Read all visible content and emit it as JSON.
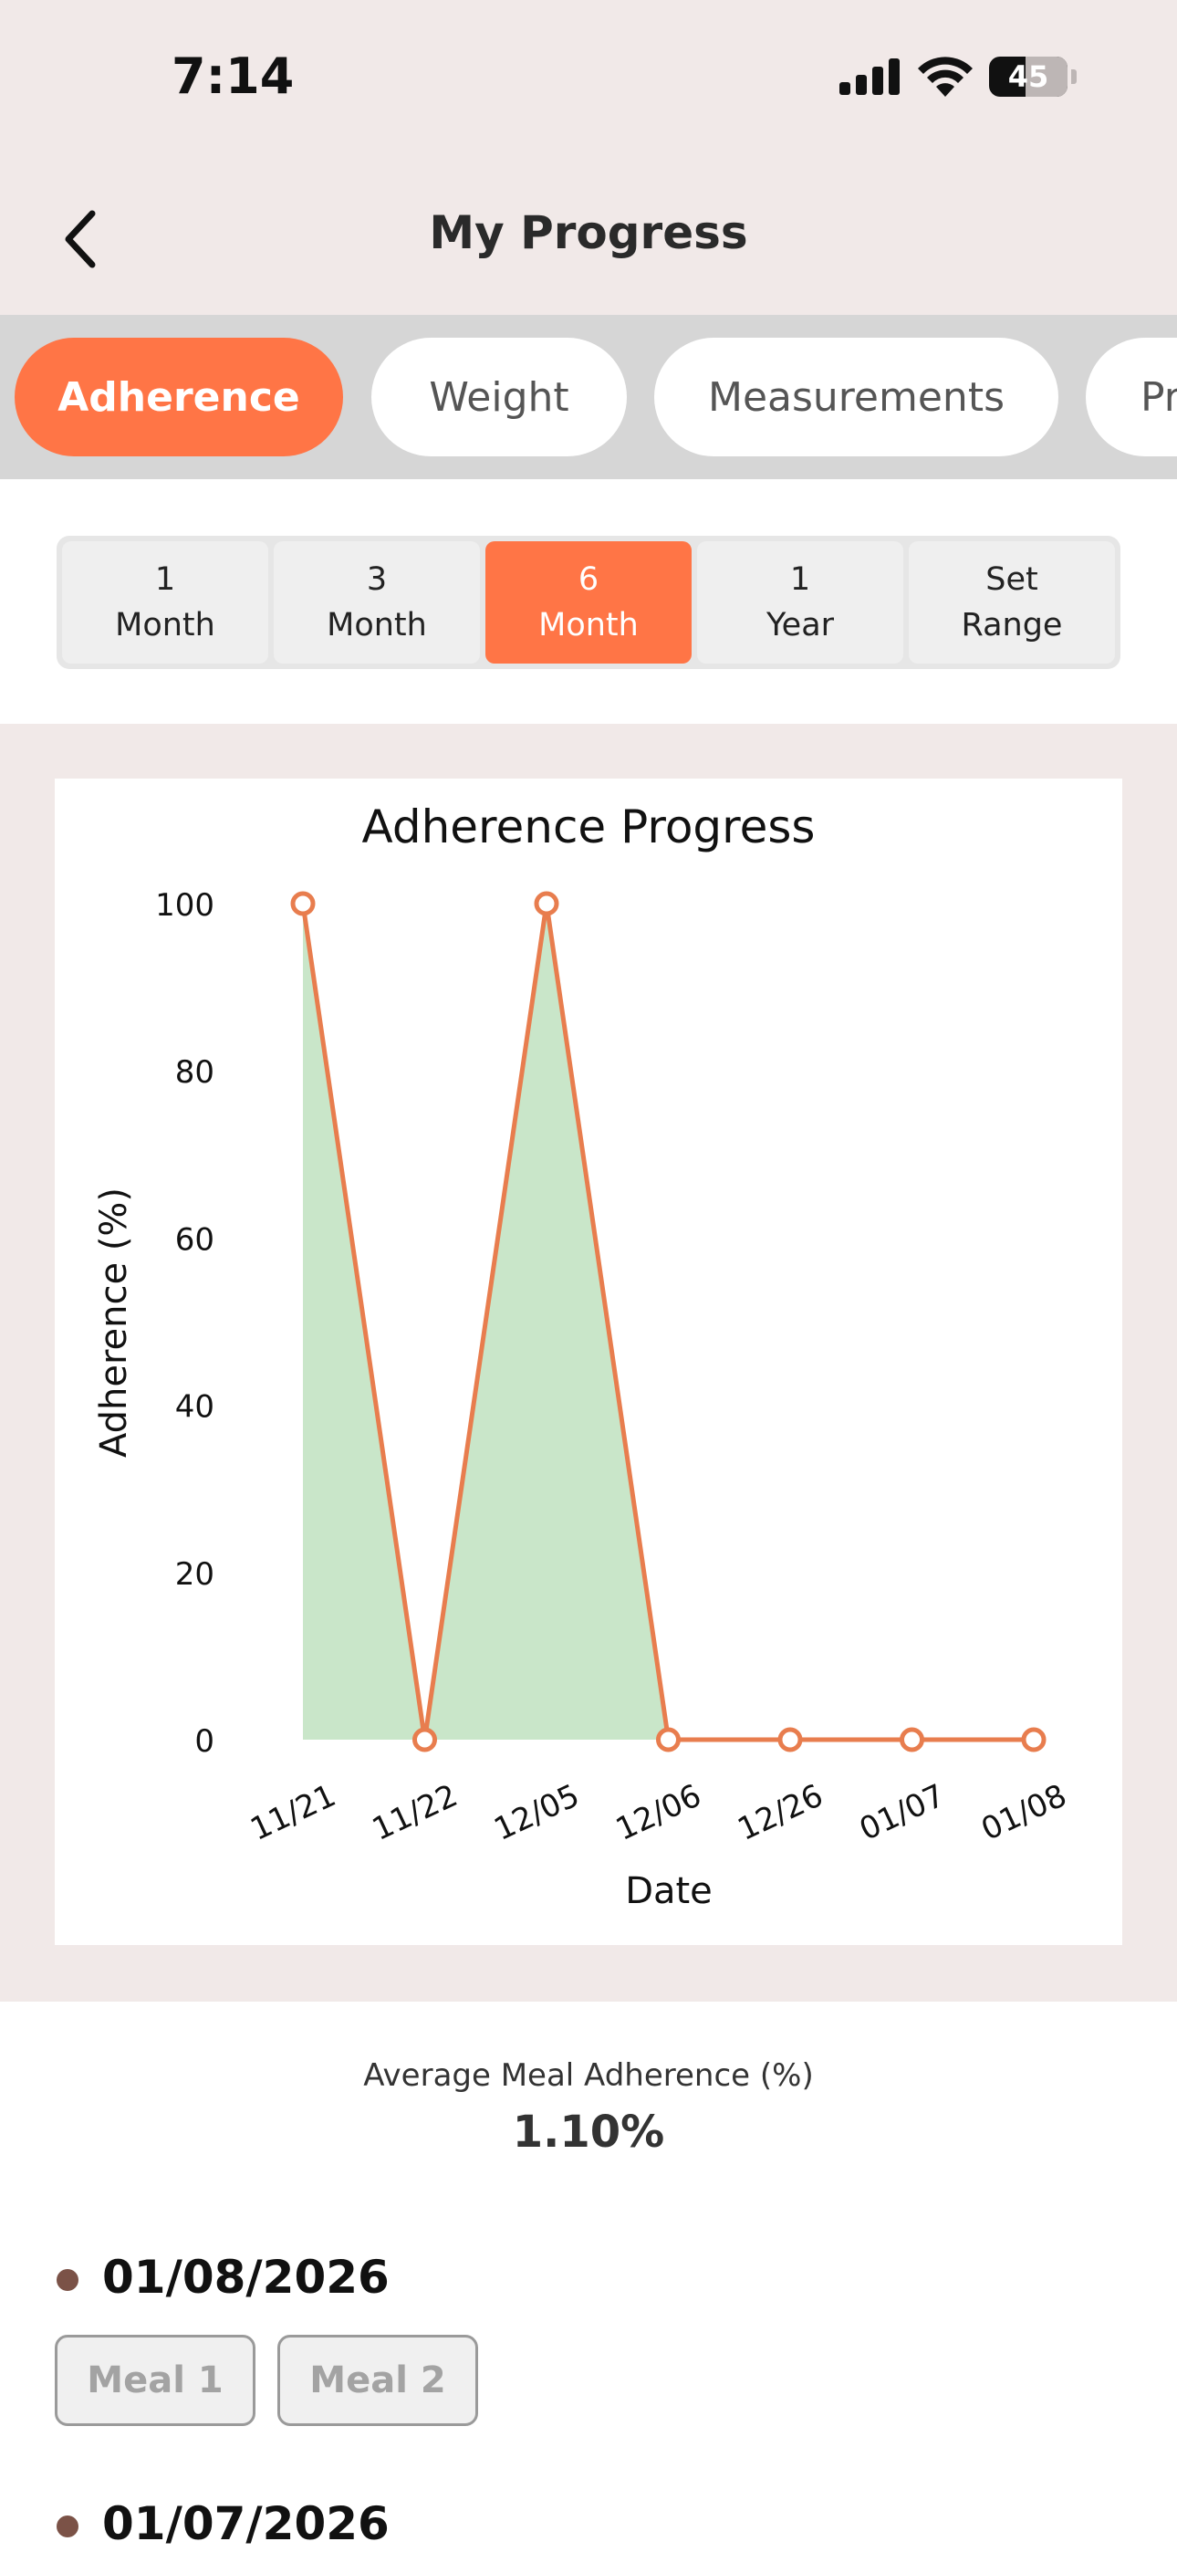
{
  "status_bar": {
    "time": "7:14",
    "battery": "45"
  },
  "header": {
    "title": "My Progress"
  },
  "tabs": [
    {
      "label": "Adherence",
      "active": true
    },
    {
      "label": "Weight",
      "active": false
    },
    {
      "label": "Measurements",
      "active": false
    },
    {
      "label": "Pr",
      "active": false
    }
  ],
  "ranges": [
    {
      "line1": "1",
      "line2": "Month",
      "active": false
    },
    {
      "line1": "3",
      "line2": "Month",
      "active": false
    },
    {
      "line1": "6",
      "line2": "Month",
      "active": true
    },
    {
      "line1": "1",
      "line2": "Year",
      "active": false
    },
    {
      "line1": "Set",
      "line2": "Range",
      "active": false
    }
  ],
  "colors": {
    "accent": "#ff7546",
    "area_fill": "#c9e6c9",
    "line": "#e87d4e",
    "header_bg": "#f1e9e8"
  },
  "chart_data": {
    "type": "area",
    "title": "Adherence Progress",
    "xlabel": "Date",
    "ylabel": "Adherence (%)",
    "categories": [
      "11/21",
      "11/22",
      "12/05",
      "12/06",
      "12/26",
      "01/07",
      "01/08"
    ],
    "series": [
      {
        "values": [
          100,
          0,
          100,
          0,
          0,
          0,
          0
        ]
      }
    ],
    "ylim": [
      0,
      100
    ],
    "yticks": [
      0,
      20,
      40,
      60,
      80,
      100
    ],
    "grid": false,
    "legend": "none"
  },
  "summary": {
    "label": "Average Meal Adherence (%)",
    "value": "1.10%"
  },
  "entries": [
    {
      "date": "01/08/2026",
      "meals": [
        "Meal 1",
        "Meal 2"
      ]
    },
    {
      "date": "01/07/2026",
      "meals": []
    }
  ]
}
